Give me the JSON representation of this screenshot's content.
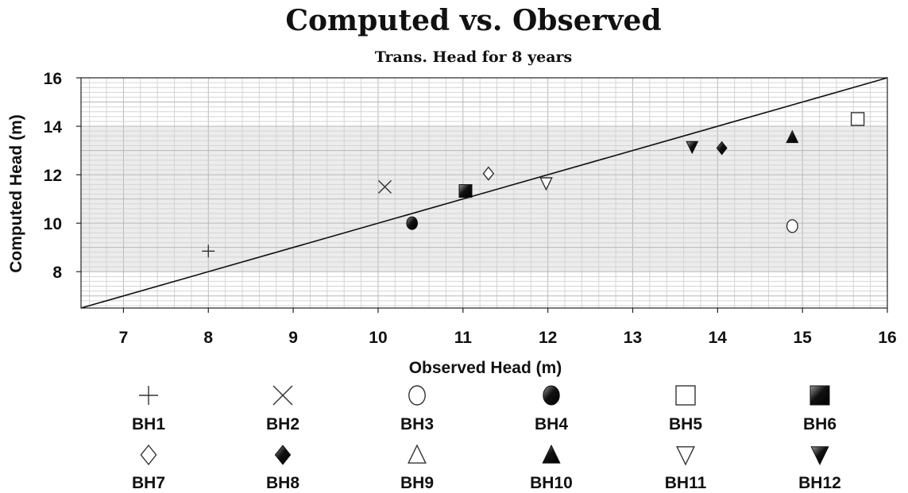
{
  "chart_data": {
    "type": "scatter",
    "title": "Computed vs. Observed",
    "subtitle": "Trans. Head for 8 years",
    "xlabel": "Observed Head (m)",
    "ylabel": "Computed Head (m)",
    "xlim": [
      6.5,
      16
    ],
    "ylim": [
      6.5,
      16
    ],
    "xticks": [
      "7",
      "8",
      "9",
      "10",
      "11",
      "12",
      "13",
      "14",
      "15",
      "16"
    ],
    "yticks": [
      "8",
      "10",
      "12",
      "14",
      "16"
    ],
    "grid": true,
    "reference_line": "y = x",
    "legend_position": "bottom",
    "series": [
      {
        "name": "BH1",
        "marker": "plus",
        "x": 8.0,
        "y": 8.85
      },
      {
        "name": "BH2",
        "marker": "cross",
        "x": 10.08,
        "y": 11.5
      },
      {
        "name": "BH3",
        "marker": "circle-open",
        "x": 14.88,
        "y": 9.88
      },
      {
        "name": "BH4",
        "marker": "circle-filled",
        "x": 10.4,
        "y": 10.0
      },
      {
        "name": "BH5",
        "marker": "square-open",
        "x": 15.65,
        "y": 14.3
      },
      {
        "name": "BH6",
        "marker": "square-filled",
        "x": 11.03,
        "y": 11.33
      },
      {
        "name": "BH7",
        "marker": "diamond-open",
        "x": 11.3,
        "y": 12.05
      },
      {
        "name": "BH8",
        "marker": "diamond-filled",
        "x": 14.05,
        "y": 13.1
      },
      {
        "name": "BH9",
        "marker": "triangle-up-open",
        "x": null,
        "y": null
      },
      {
        "name": "BH10",
        "marker": "triangle-up-filled",
        "x": 14.88,
        "y": 13.55
      },
      {
        "name": "BH11",
        "marker": "triangle-down-open",
        "x": 11.98,
        "y": 11.65
      },
      {
        "name": "BH12",
        "marker": "triangle-down-filled",
        "x": 13.7,
        "y": 13.15
      }
    ]
  }
}
